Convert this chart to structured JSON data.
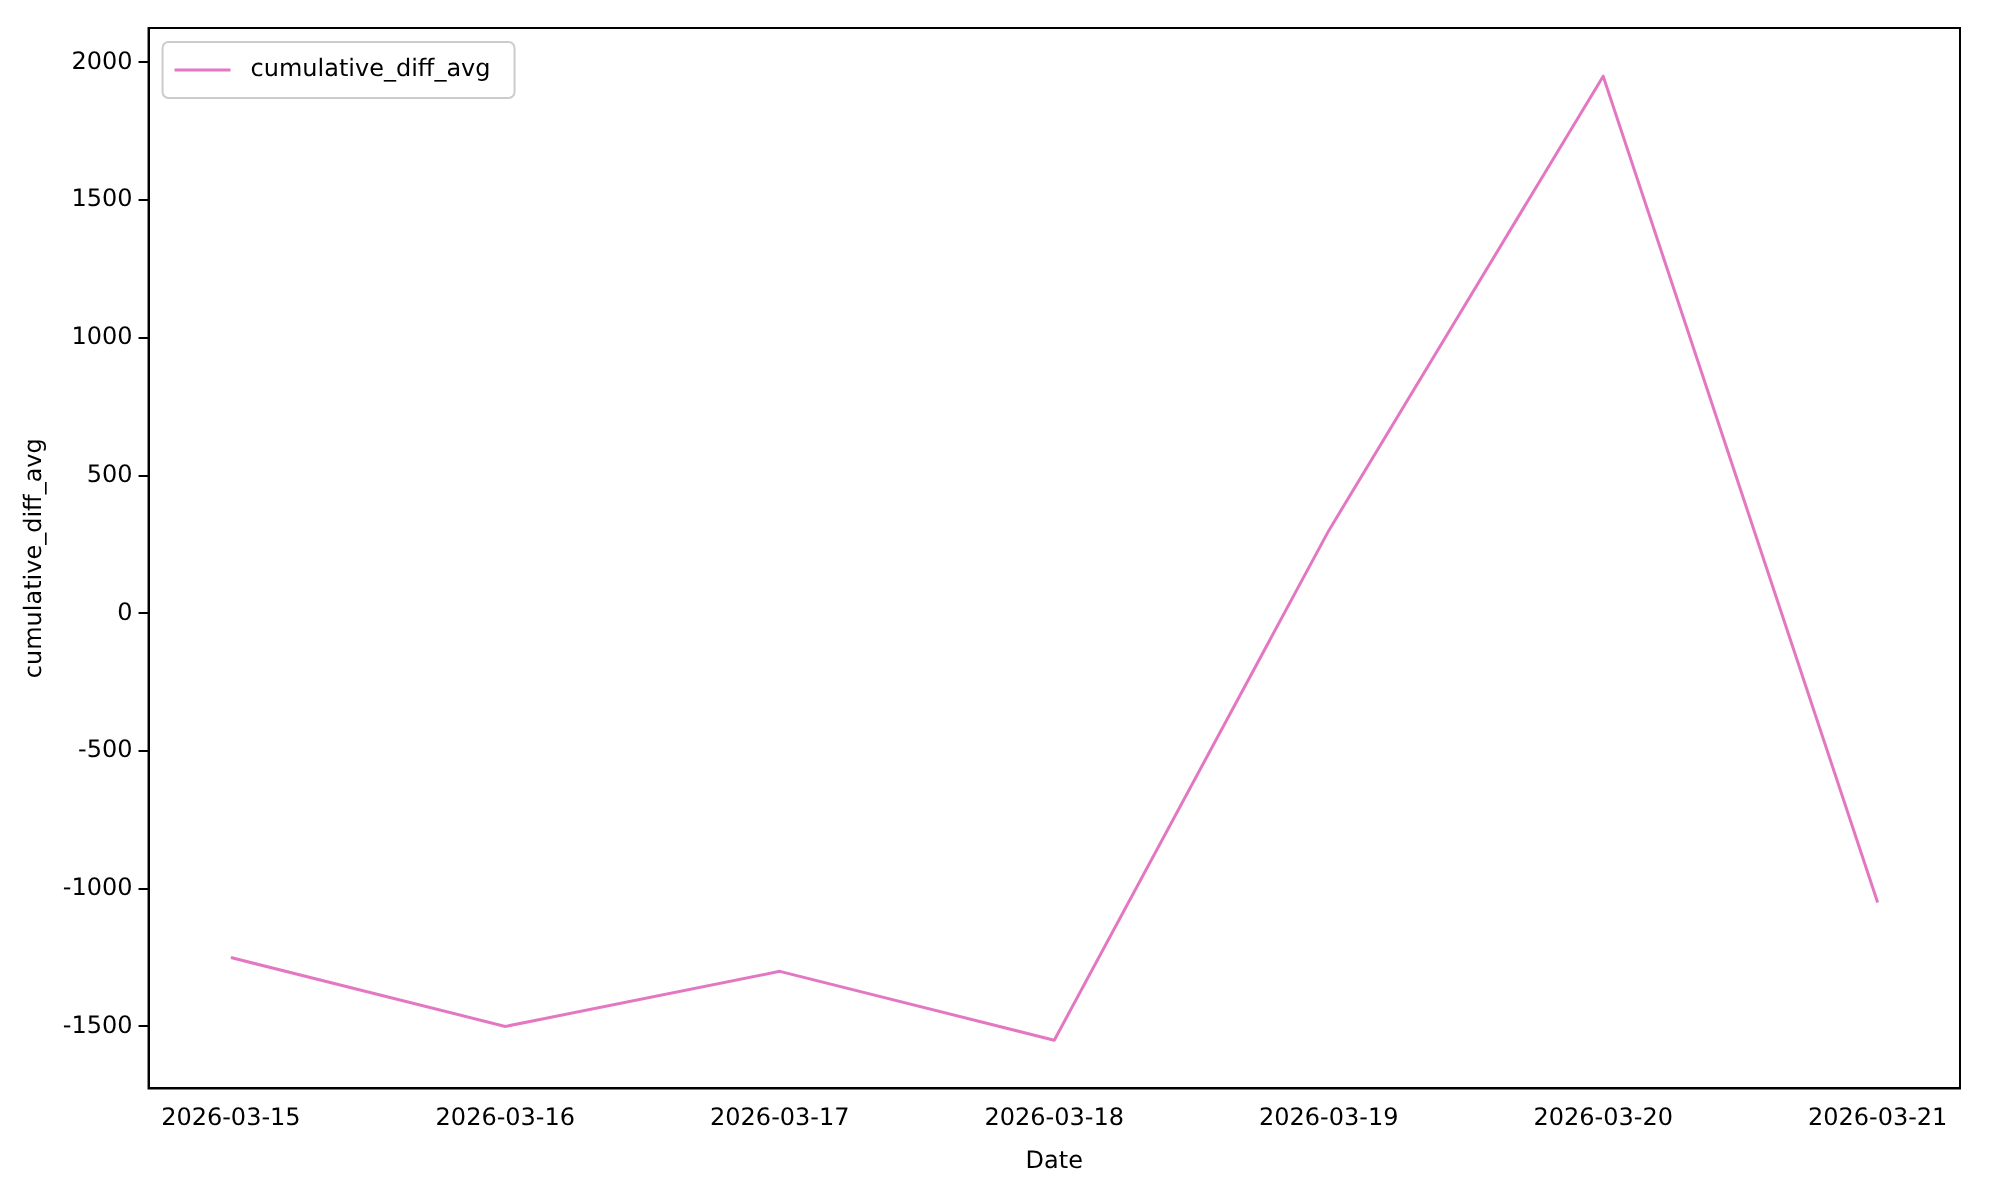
{
  "chart_data": {
    "type": "line",
    "xlabel": "Date",
    "ylabel": "cumulative_diff_avg",
    "x": [
      "2026-03-15",
      "2026-03-16",
      "2026-03-17",
      "2026-03-18",
      "2026-03-19",
      "2026-03-20",
      "2026-03-21"
    ],
    "series": [
      {
        "name": "cumulative_diff_avg",
        "color": "#e377c2",
        "values": [
          -1250,
          -1500,
          -1300,
          -1550,
          300,
          1950,
          -1050
        ]
      }
    ],
    "xlim": [
      "2026-03-14T16:48",
      "2026-03-21T07:12"
    ],
    "xticks": [
      "2026-03-15",
      "2026-03-16",
      "2026-03-17",
      "2026-03-18",
      "2026-03-19",
      "2026-03-20",
      "2026-03-21"
    ],
    "ylim": [
      -1725,
      2125
    ],
    "yticks": [
      -1500,
      -1000,
      -500,
      0,
      500,
      1000,
      1500,
      2000
    ],
    "grid": false,
    "legend": "top left",
    "marker": "none",
    "line_style": "solid"
  }
}
